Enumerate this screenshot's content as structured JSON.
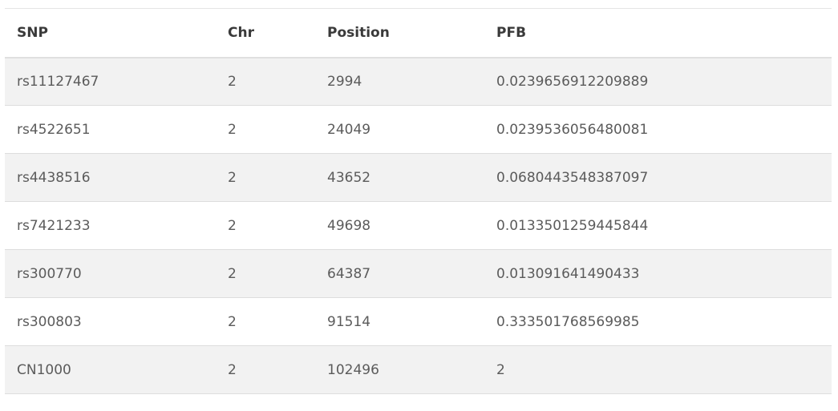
{
  "table": {
    "headers": [
      "SNP",
      "Chr",
      "Position",
      "PFB"
    ],
    "rows": [
      [
        "rs11127467",
        "2",
        "2994",
        "0.0239656912209889"
      ],
      [
        "rs4522651",
        "2",
        "24049",
        "0.0239536056480081"
      ],
      [
        "rs4438516",
        "2",
        "43652",
        "0.0680443548387097"
      ],
      [
        "rs7421233",
        "2",
        "49698",
        "0.0133501259445844"
      ],
      [
        "rs300770",
        "2",
        "64387",
        "0.013091641490433"
      ],
      [
        "rs300803",
        "2",
        "91514",
        "0.333501768569985"
      ],
      [
        "CN1000",
        "2",
        "102496",
        "2"
      ]
    ]
  }
}
